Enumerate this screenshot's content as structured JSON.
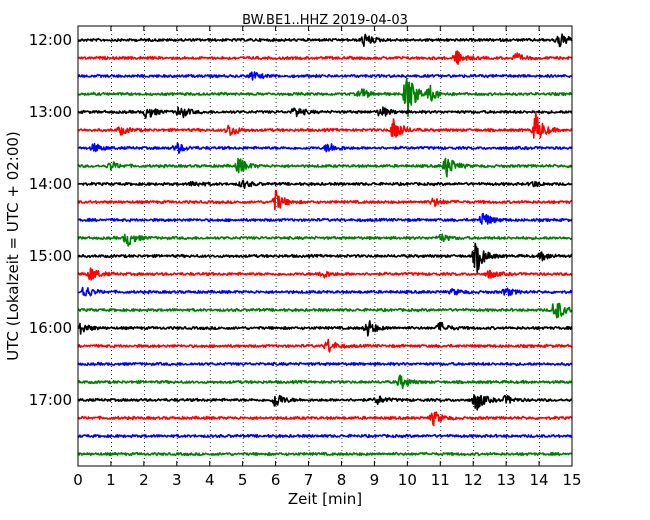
{
  "chart_data": {
    "type": "line",
    "title": "BW.BE1..HHZ 2019-04-03",
    "xlabel": "Zeit  [min]",
    "ylabel": "UTC (Lokalzeit = UTC + 02:00)",
    "xlim": [
      0,
      15
    ],
    "x_ticks": [
      0,
      1,
      2,
      3,
      4,
      5,
      6,
      7,
      8,
      9,
      10,
      11,
      12,
      13,
      14,
      15
    ],
    "x_grid": "dotted vertical lines at each minute",
    "y_ticks": [
      "12:00",
      "13:00",
      "14:00",
      "15:00",
      "16:00",
      "17:00"
    ],
    "trace_interval_minutes": 15,
    "trace_start": "12:00",
    "colors": [
      "#000000",
      "#ff0000",
      "#0000ff",
      "#008000"
    ],
    "traces": [
      {
        "start": "12:00",
        "color": "#000000",
        "events": [
          [
            8.7,
            0.5
          ],
          [
            14.6,
            0.6
          ]
        ]
      },
      {
        "start": "12:15",
        "color": "#ff0000",
        "events": [
          [
            11.5,
            0.5
          ],
          [
            13.3,
            0.3
          ]
        ]
      },
      {
        "start": "12:30",
        "color": "#0000ff",
        "events": [
          [
            5.3,
            0.3
          ]
        ]
      },
      {
        "start": "12:45",
        "color": "#008000",
        "events": [
          [
            8.6,
            0.4
          ],
          [
            10.0,
            1.8
          ],
          [
            10.7,
            0.5
          ]
        ]
      },
      {
        "start": "13:00",
        "color": "#000000",
        "events": [
          [
            2.1,
            0.5
          ],
          [
            3.1,
            0.5
          ],
          [
            6.6,
            0.4
          ],
          [
            9.2,
            0.4
          ]
        ]
      },
      {
        "start": "13:15",
        "color": "#ff0000",
        "events": [
          [
            1.3,
            0.3
          ],
          [
            4.6,
            0.5
          ],
          [
            9.6,
            0.9
          ],
          [
            13.9,
            1.2
          ]
        ]
      },
      {
        "start": "13:30",
        "color": "#0000ff",
        "events": [
          [
            0.5,
            0.3
          ],
          [
            3.0,
            0.4
          ],
          [
            7.6,
            0.4
          ]
        ]
      },
      {
        "start": "13:45",
        "color": "#008000",
        "events": [
          [
            1.0,
            0.3
          ],
          [
            4.9,
            0.6
          ],
          [
            11.2,
            0.8
          ]
        ]
      },
      {
        "start": "14:00",
        "color": "#000000",
        "events": [
          [
            3.5,
            0.2
          ],
          [
            5.0,
            0.3
          ],
          [
            13.8,
            0.2
          ]
        ]
      },
      {
        "start": "14:15",
        "color": "#ff0000",
        "events": [
          [
            6.0,
            0.8
          ],
          [
            10.8,
            0.3
          ]
        ]
      },
      {
        "start": "14:30",
        "color": "#0000ff",
        "events": [
          [
            12.3,
            0.6
          ]
        ]
      },
      {
        "start": "14:45",
        "color": "#008000",
        "events": [
          [
            1.5,
            0.6
          ],
          [
            11.0,
            0.3
          ]
        ]
      },
      {
        "start": "15:00",
        "color": "#000000",
        "events": [
          [
            12.1,
            1.2
          ],
          [
            14.1,
            0.3
          ]
        ]
      },
      {
        "start": "15:15",
        "color": "#ff0000",
        "events": [
          [
            0.4,
            0.5
          ],
          [
            7.4,
            0.3
          ],
          [
            12.5,
            0.3
          ]
        ]
      },
      {
        "start": "15:30",
        "color": "#0000ff",
        "events": [
          [
            0.2,
            0.5
          ],
          [
            11.4,
            0.2
          ],
          [
            13.0,
            0.3
          ]
        ]
      },
      {
        "start": "15:45",
        "color": "#008000",
        "events": [
          [
            14.5,
            0.9
          ]
        ]
      },
      {
        "start": "16:00",
        "color": "#000000",
        "events": [
          [
            0.1,
            0.4
          ],
          [
            8.8,
            0.6
          ],
          [
            11.0,
            0.4
          ]
        ]
      },
      {
        "start": "16:15",
        "color": "#ff0000",
        "events": [
          [
            7.6,
            0.5
          ]
        ]
      },
      {
        "start": "16:30",
        "color": "#0000ff",
        "events": []
      },
      {
        "start": "16:45",
        "color": "#008000",
        "events": [
          [
            9.8,
            0.5
          ]
        ]
      },
      {
        "start": "17:00",
        "color": "#000000",
        "events": [
          [
            6.0,
            0.6
          ],
          [
            9.1,
            0.3
          ],
          [
            12.1,
            0.8
          ],
          [
            13.0,
            0.3
          ]
        ]
      },
      {
        "start": "17:15",
        "color": "#ff0000",
        "events": [
          [
            10.8,
            0.5
          ]
        ]
      },
      {
        "start": "17:30",
        "color": "#0000ff",
        "events": []
      },
      {
        "start": "17:45",
        "color": "#008000",
        "events": []
      }
    ]
  }
}
